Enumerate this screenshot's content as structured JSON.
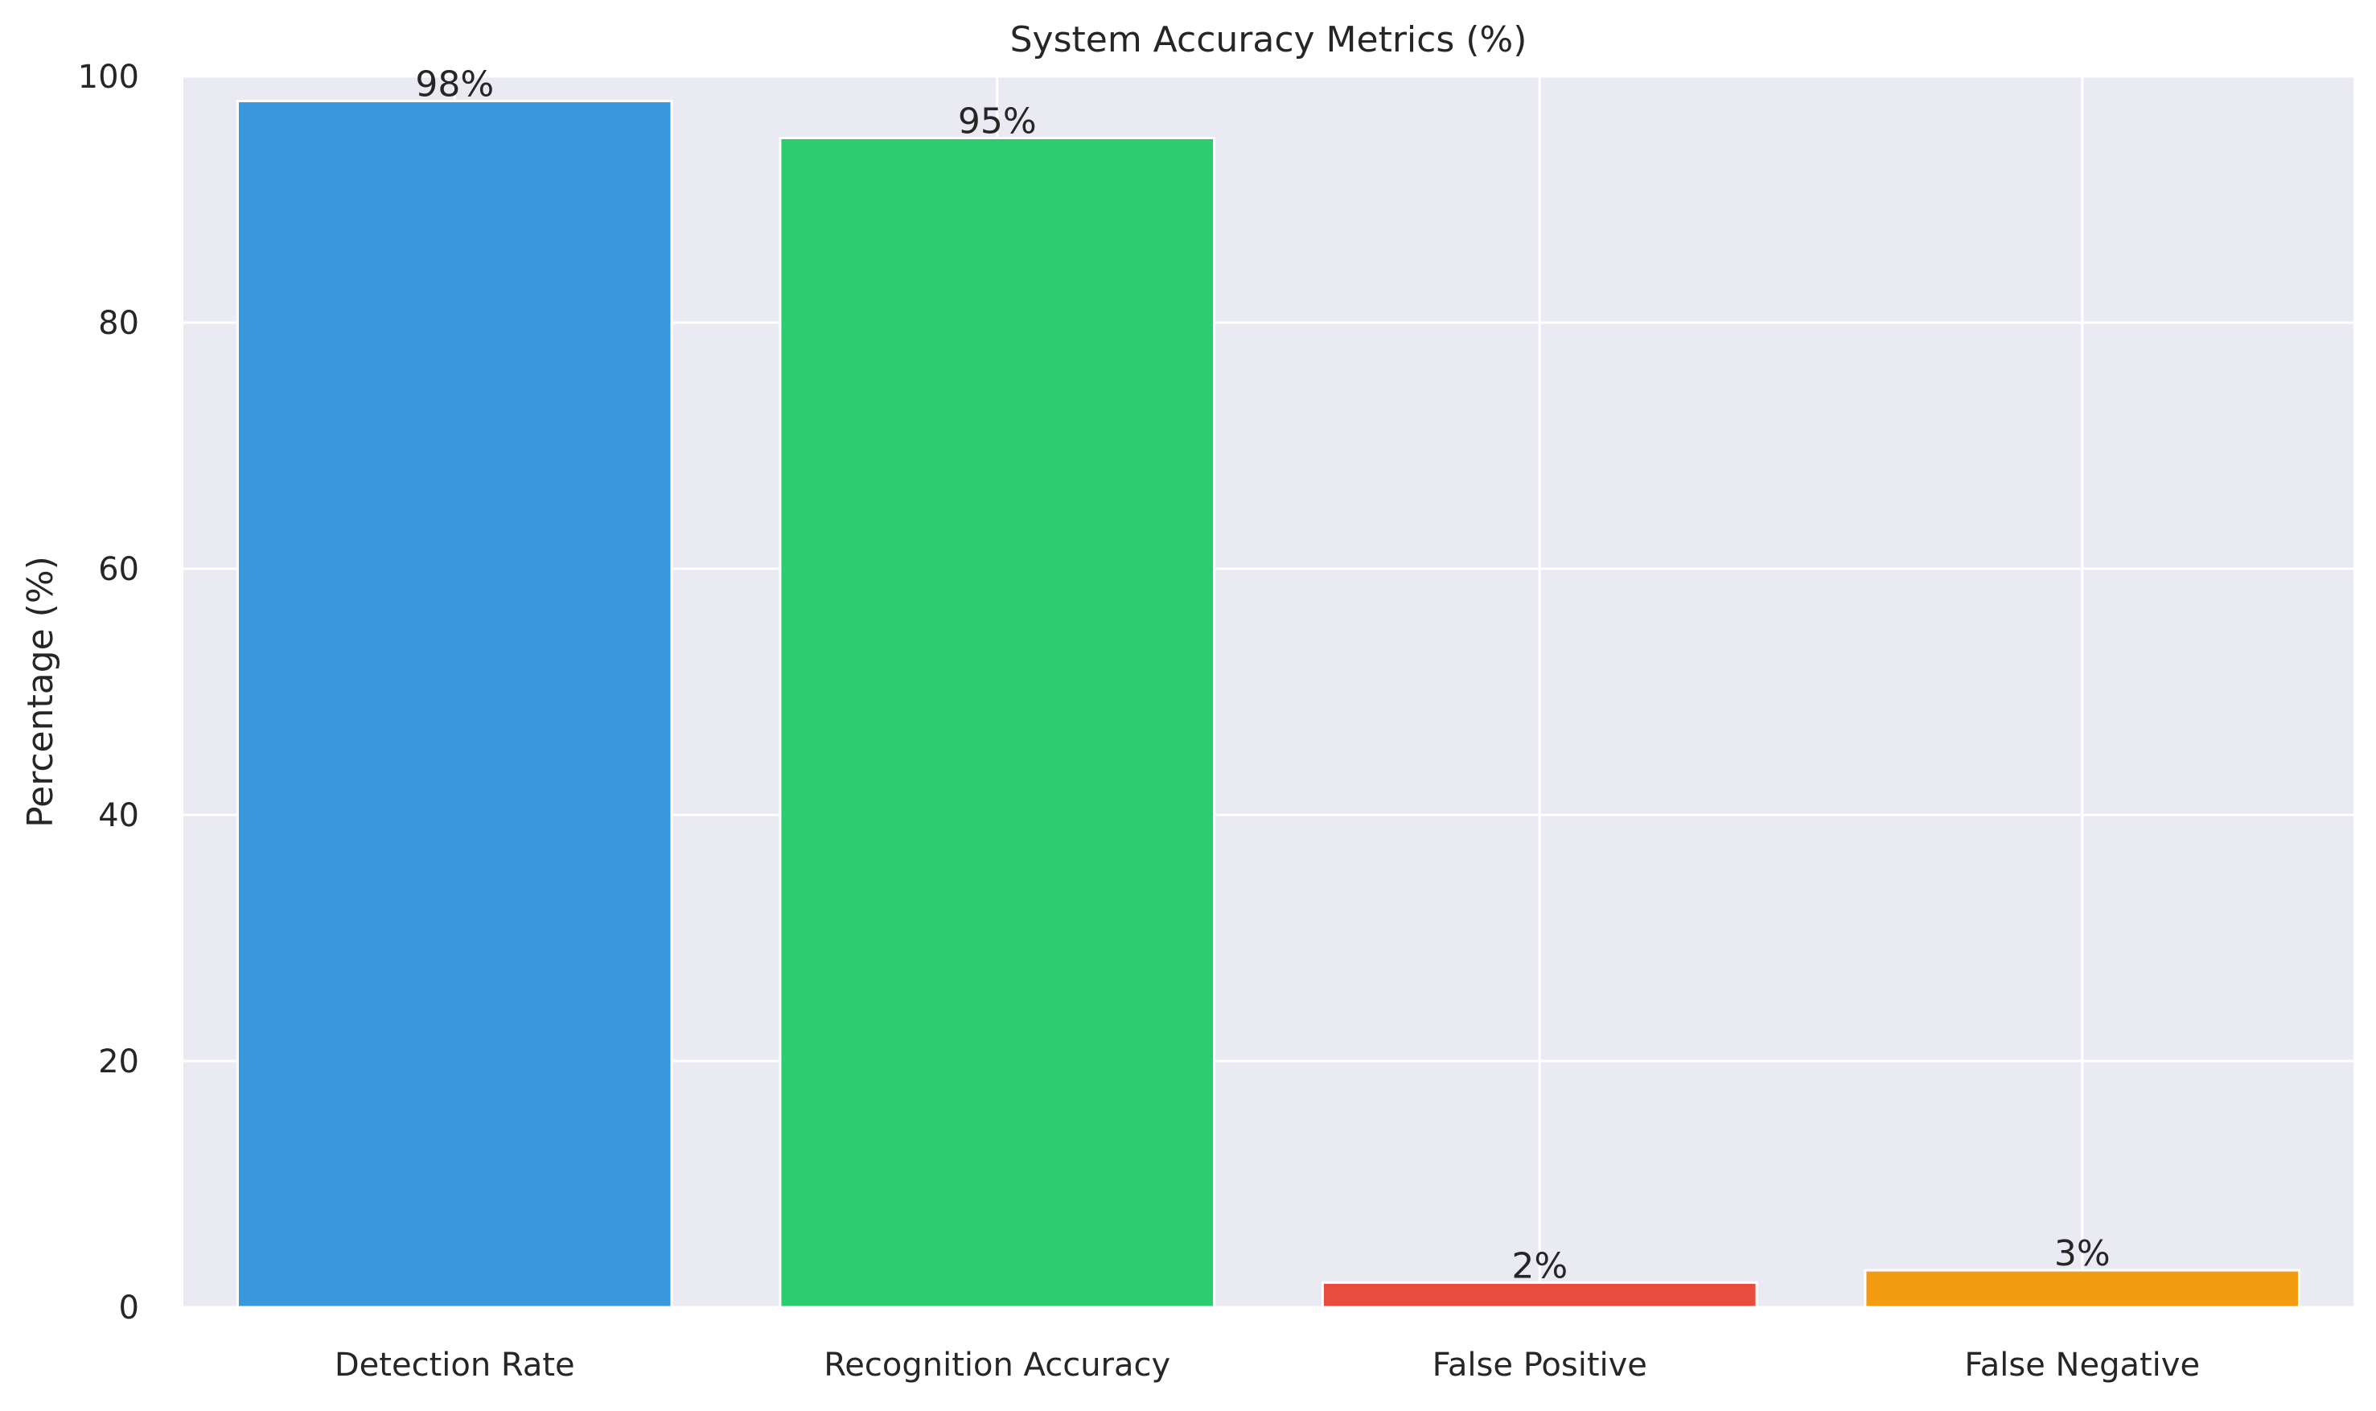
{
  "chart_data": {
    "type": "bar",
    "title": "System Accuracy Metrics (%)",
    "xlabel": "",
    "ylabel": "Percentage (%)",
    "categories": [
      "Detection Rate",
      "Recognition Accuracy",
      "False Positive",
      "False Negative"
    ],
    "values": [
      98,
      95,
      2,
      3
    ],
    "data_labels": [
      "98%",
      "95%",
      "2%",
      "3%"
    ],
    "colors": [
      "#3998DB",
      "#2ECC71",
      "#E74C3C",
      "#F39C12"
    ],
    "ylim": [
      0,
      100
    ],
    "yticks": [
      0,
      20,
      40,
      60,
      80,
      100
    ],
    "grid": true,
    "legend": "none",
    "plot_background": "#EAEAF2",
    "grid_color": "#FFFFFF"
  }
}
